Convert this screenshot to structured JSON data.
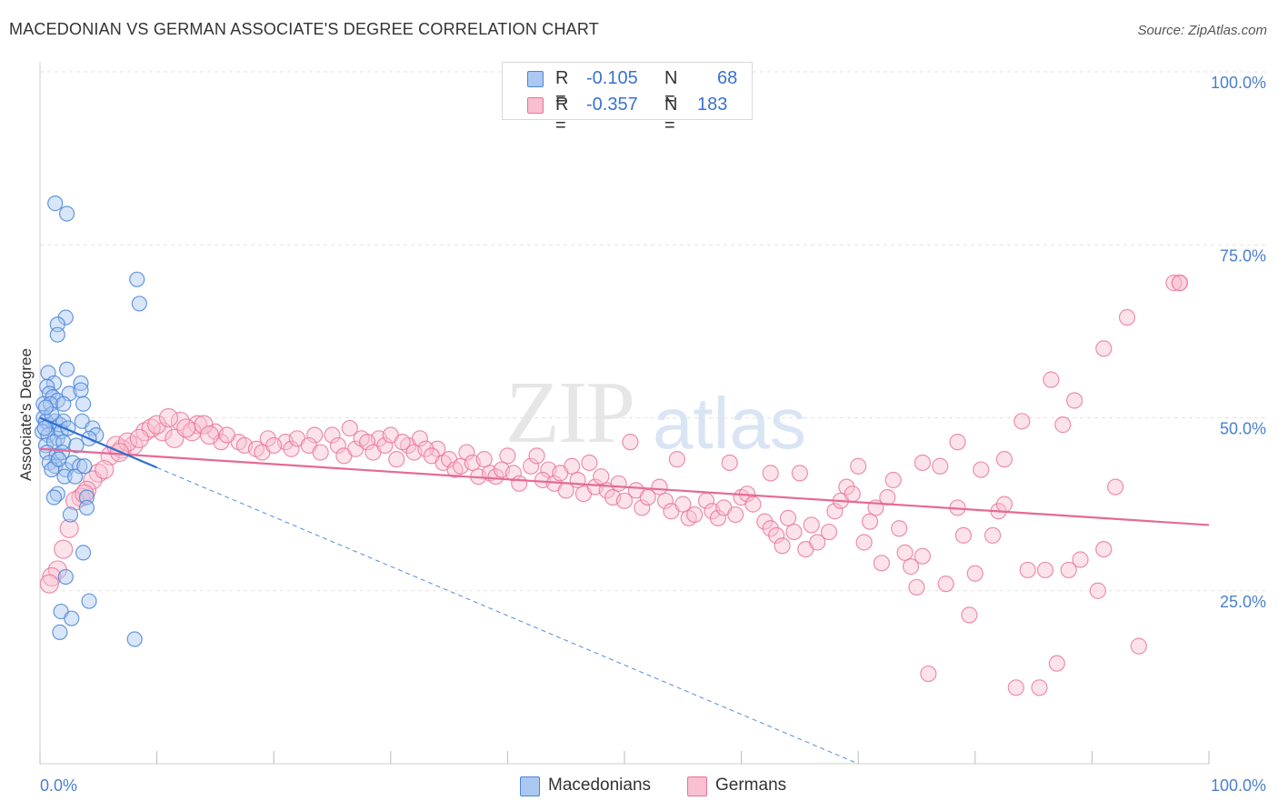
{
  "title": "MACEDONIAN VS GERMAN ASSOCIATE'S DEGREE CORRELATION CHART",
  "source": "Source: ZipAtlas.com",
  "watermark": {
    "zip": "ZIP",
    "atlas": "atlas"
  },
  "legend": {
    "r_label": "R =",
    "n_label": "N =",
    "rows": [
      {
        "r": "-0.105",
        "n": "68"
      },
      {
        "r": "-0.357",
        "n": "183"
      }
    ]
  },
  "bottom_legend": [
    "Macedonians",
    "Germans"
  ],
  "colors": {
    "blue_fill": "#aac8f2",
    "blue_stroke": "#4a86d8",
    "blue_line": "#2f6fd0",
    "pink_fill": "#f8c0d0",
    "pink_stroke": "#e8739a",
    "pink_line": "#e46a96",
    "grid": "#e3e3e3",
    "axis_text": "#4a7fd0"
  },
  "chart_data": {
    "type": "scatter",
    "title": "MACEDONIAN VS GERMAN ASSOCIATE'S DEGREE CORRELATION CHART",
    "xlabel": "",
    "ylabel": "Associate's Degree",
    "xlim": [
      0,
      100
    ],
    "ylim": [
      0,
      104
    ],
    "x_tick_labels": [
      "0.0%",
      "100.0%"
    ],
    "y_ticks": [
      25,
      50,
      75,
      100
    ],
    "y_tick_labels": [
      "25.0%",
      "50.0%",
      "75.0%",
      "100.0%"
    ],
    "grid": true,
    "legend_position": "top-center",
    "series": [
      {
        "name": "Macedonians",
        "r": -0.105,
        "n": 68,
        "trend": {
          "x0": 0.0,
          "y0": 50.0,
          "x1": 10.0,
          "y1": 42.8,
          "dashed_to_x": 70.0,
          "dashed_to_y": 0.0
        },
        "points": [
          [
            1.3,
            81.0
          ],
          [
            2.3,
            79.5
          ],
          [
            8.3,
            70.0
          ],
          [
            8.5,
            66.5
          ],
          [
            2.2,
            64.5
          ],
          [
            1.5,
            63.5
          ],
          [
            1.5,
            62.0
          ],
          [
            0.7,
            56.5
          ],
          [
            2.3,
            57.0
          ],
          [
            1.2,
            55.0
          ],
          [
            3.5,
            55.0
          ],
          [
            0.6,
            54.5
          ],
          [
            0.8,
            53.5
          ],
          [
            1.1,
            53.0
          ],
          [
            1.5,
            52.5
          ],
          [
            2.5,
            53.5
          ],
          [
            3.5,
            54.0
          ],
          [
            0.3,
            52.0
          ],
          [
            0.9,
            52.0
          ],
          [
            2.0,
            52.0
          ],
          [
            3.7,
            52.0
          ],
          [
            0.3,
            50.0
          ],
          [
            0.5,
            49.5
          ],
          [
            0.8,
            49.0
          ],
          [
            1.3,
            49.5
          ],
          [
            1.7,
            49.0
          ],
          [
            2.0,
            49.5
          ],
          [
            3.6,
            49.5
          ],
          [
            0.2,
            48.0
          ],
          [
            0.7,
            47.5
          ],
          [
            1.5,
            47.0
          ],
          [
            1.8,
            48.0
          ],
          [
            4.5,
            48.5
          ],
          [
            4.8,
            47.5
          ],
          [
            0.5,
            46.0
          ],
          [
            1.2,
            46.5
          ],
          [
            2.0,
            46.5
          ],
          [
            4.2,
            47.0
          ],
          [
            0.6,
            45.0
          ],
          [
            1.4,
            44.5
          ],
          [
            1.9,
            45.0
          ],
          [
            0.8,
            43.5
          ],
          [
            1.3,
            43.0
          ],
          [
            2.2,
            42.5
          ],
          [
            2.8,
            43.5
          ],
          [
            3.4,
            43.0
          ],
          [
            1.0,
            42.5
          ],
          [
            2.1,
            41.5
          ],
          [
            3.0,
            41.5
          ],
          [
            3.8,
            43.0
          ],
          [
            1.5,
            39.0
          ],
          [
            1.2,
            38.5
          ],
          [
            4.0,
            38.5
          ],
          [
            4.0,
            37.0
          ],
          [
            2.6,
            36.0
          ],
          [
            3.7,
            30.5
          ],
          [
            2.2,
            27.0
          ],
          [
            4.2,
            23.5
          ],
          [
            1.8,
            22.0
          ],
          [
            2.7,
            21.0
          ],
          [
            1.7,
            19.0
          ],
          [
            8.1,
            18.0
          ],
          [
            0.4,
            48.5
          ],
          [
            1.0,
            50.5
          ],
          [
            0.5,
            51.5
          ],
          [
            2.4,
            48.5
          ],
          [
            1.6,
            44.0
          ],
          [
            3.1,
            46.0
          ]
        ]
      },
      {
        "name": "Germans",
        "r": -0.357,
        "n": 183,
        "trend": {
          "x0": 0.0,
          "y0": 45.5,
          "x1": 100.0,
          "y1": 34.5
        },
        "points": [
          [
            97.5,
            69.5
          ],
          [
            97.0,
            69.5
          ],
          [
            97.5,
            69.5
          ],
          [
            93.0,
            64.5
          ],
          [
            91.0,
            60.0
          ],
          [
            86.5,
            55.5
          ],
          [
            88.5,
            52.5
          ],
          [
            84.0,
            49.5
          ],
          [
            87.5,
            49.0
          ],
          [
            78.5,
            46.5
          ],
          [
            82.5,
            44.0
          ],
          [
            77.0,
            43.0
          ],
          [
            80.5,
            42.5
          ],
          [
            75.5,
            43.5
          ],
          [
            70.0,
            43.0
          ],
          [
            73.0,
            41.0
          ],
          [
            65.0,
            42.0
          ],
          [
            62.5,
            42.0
          ],
          [
            59.0,
            43.5
          ],
          [
            54.5,
            44.0
          ],
          [
            50.5,
            46.5
          ],
          [
            47.0,
            43.5
          ],
          [
            45.5,
            43.0
          ],
          [
            43.5,
            42.5
          ],
          [
            40.0,
            44.5
          ],
          [
            36.5,
            45.0
          ],
          [
            34.0,
            45.5
          ],
          [
            31.5,
            46.0
          ],
          [
            29.0,
            47.0
          ],
          [
            26.5,
            48.5
          ],
          [
            23.5,
            47.5
          ],
          [
            21.0,
            46.5
          ],
          [
            19.5,
            47.0
          ],
          [
            17.0,
            46.5
          ],
          [
            15.0,
            48.0
          ],
          [
            13.5,
            49.0
          ],
          [
            12.0,
            49.5
          ],
          [
            10.5,
            48.0
          ],
          [
            9.0,
            48.0
          ],
          [
            8.0,
            46.0
          ],
          [
            7.0,
            45.5
          ],
          [
            6.0,
            44.5
          ],
          [
            5.0,
            42.0
          ],
          [
            4.5,
            41.0
          ],
          [
            4.0,
            39.5
          ],
          [
            3.5,
            38.5
          ],
          [
            3.0,
            38.0
          ],
          [
            2.5,
            34.0
          ],
          [
            2.0,
            31.0
          ],
          [
            1.5,
            28.0
          ],
          [
            1.0,
            27.0
          ],
          [
            0.8,
            26.0
          ],
          [
            6.5,
            46.0
          ],
          [
            7.5,
            46.5
          ],
          [
            9.5,
            48.5
          ],
          [
            11.5,
            47.0
          ],
          [
            13.0,
            48.0
          ],
          [
            14.0,
            49.0
          ],
          [
            15.5,
            46.5
          ],
          [
            16.0,
            47.5
          ],
          [
            17.5,
            46.0
          ],
          [
            18.5,
            45.5
          ],
          [
            19.0,
            45.0
          ],
          [
            20.0,
            46.0
          ],
          [
            21.5,
            45.5
          ],
          [
            22.0,
            47.0
          ],
          [
            23.0,
            46.0
          ],
          [
            24.0,
            45.0
          ],
          [
            25.0,
            47.5
          ],
          [
            25.5,
            46.0
          ],
          [
            26.0,
            44.5
          ],
          [
            27.0,
            45.5
          ],
          [
            27.5,
            47.0
          ],
          [
            28.0,
            46.5
          ],
          [
            28.5,
            45.0
          ],
          [
            29.5,
            46.0
          ],
          [
            30.0,
            47.5
          ],
          [
            30.5,
            44.0
          ],
          [
            31.0,
            46.5
          ],
          [
            32.0,
            45.0
          ],
          [
            32.5,
            47.0
          ],
          [
            33.0,
            45.5
          ],
          [
            33.5,
            44.5
          ],
          [
            34.5,
            43.5
          ],
          [
            35.0,
            44.0
          ],
          [
            35.5,
            42.5
          ],
          [
            36.0,
            43.0
          ],
          [
            37.0,
            43.5
          ],
          [
            37.5,
            41.5
          ],
          [
            38.0,
            44.0
          ],
          [
            38.5,
            42.0
          ],
          [
            39.0,
            41.5
          ],
          [
            39.5,
            42.5
          ],
          [
            40.5,
            42.0
          ],
          [
            41.0,
            40.5
          ],
          [
            42.0,
            43.0
          ],
          [
            42.5,
            44.5
          ],
          [
            43.0,
            41.0
          ],
          [
            44.0,
            40.5
          ],
          [
            44.5,
            42.0
          ],
          [
            45.0,
            39.5
          ],
          [
            46.0,
            41.0
          ],
          [
            46.5,
            39.0
          ],
          [
            47.5,
            40.0
          ],
          [
            48.0,
            41.5
          ],
          [
            48.5,
            39.5
          ],
          [
            49.0,
            38.5
          ],
          [
            49.5,
            40.5
          ],
          [
            50.0,
            38.0
          ],
          [
            51.0,
            39.5
          ],
          [
            51.5,
            37.0
          ],
          [
            52.0,
            38.5
          ],
          [
            53.0,
            40.0
          ],
          [
            53.5,
            38.0
          ],
          [
            54.0,
            36.5
          ],
          [
            55.0,
            37.5
          ],
          [
            55.5,
            35.5
          ],
          [
            56.0,
            36.0
          ],
          [
            57.0,
            38.0
          ],
          [
            57.5,
            36.5
          ],
          [
            58.0,
            35.5
          ],
          [
            58.5,
            37.0
          ],
          [
            59.5,
            36.0
          ],
          [
            60.0,
            38.5
          ],
          [
            60.5,
            39.0
          ],
          [
            61.0,
            37.5
          ],
          [
            62.0,
            35.0
          ],
          [
            62.5,
            34.0
          ],
          [
            63.0,
            33.0
          ],
          [
            63.5,
            31.5
          ],
          [
            64.0,
            35.5
          ],
          [
            64.5,
            33.5
          ],
          [
            65.5,
            31.0
          ],
          [
            66.0,
            34.5
          ],
          [
            66.5,
            32.0
          ],
          [
            67.5,
            33.5
          ],
          [
            68.0,
            36.5
          ],
          [
            68.5,
            38.0
          ],
          [
            69.0,
            40.0
          ],
          [
            69.5,
            39.0
          ],
          [
            70.5,
            32.0
          ],
          [
            71.0,
            35.0
          ],
          [
            71.5,
            37.0
          ],
          [
            72.0,
            29.0
          ],
          [
            72.5,
            38.5
          ],
          [
            73.5,
            34.0
          ],
          [
            74.0,
            30.5
          ],
          [
            74.5,
            28.5
          ],
          [
            75.0,
            25.5
          ],
          [
            75.5,
            30.0
          ],
          [
            76.0,
            13.0
          ],
          [
            77.5,
            26.0
          ],
          [
            78.5,
            37.0
          ],
          [
            79.0,
            33.0
          ],
          [
            79.5,
            21.5
          ],
          [
            80.0,
            27.5
          ],
          [
            81.5,
            33.0
          ],
          [
            82.0,
            36.5
          ],
          [
            82.5,
            37.5
          ],
          [
            83.5,
            11.0
          ],
          [
            84.5,
            28.0
          ],
          [
            85.5,
            11.0
          ],
          [
            86.0,
            28.0
          ],
          [
            87.0,
            14.5
          ],
          [
            88.0,
            28.0
          ],
          [
            89.0,
            29.5
          ],
          [
            90.5,
            25.0
          ],
          [
            91.0,
            31.0
          ],
          [
            92.0,
            40.0
          ],
          [
            94.0,
            17.0
          ],
          [
            3.8,
            39.0
          ],
          [
            5.5,
            42.5
          ],
          [
            6.8,
            45.0
          ],
          [
            8.5,
            47.0
          ],
          [
            10.0,
            49.0
          ],
          [
            11.0,
            50.0
          ],
          [
            12.5,
            48.5
          ],
          [
            14.5,
            47.5
          ]
        ]
      }
    ]
  }
}
